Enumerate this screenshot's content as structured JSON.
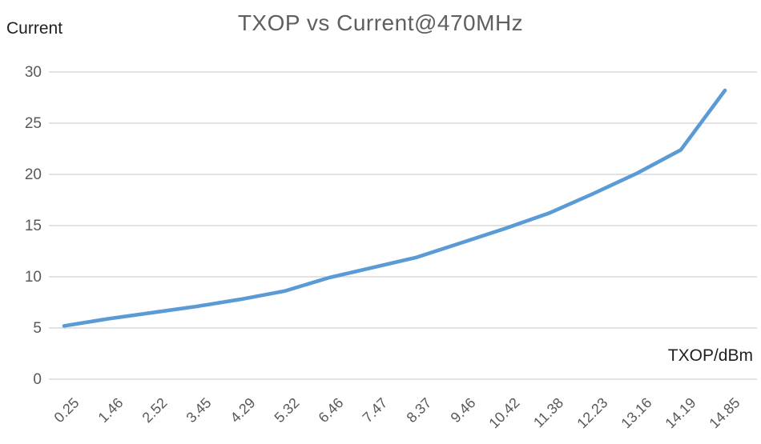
{
  "chart": {
    "title": "TXOP vs Current@470MHz",
    "y_axis_title": "Current",
    "x_axis_title": "TXOP/dBm"
  },
  "colors": {
    "series_line": "#5B9BD5",
    "gridline": "#D9D9D9",
    "tick_text": "#595959",
    "axis_caption_text": "#1f1f1f",
    "title_text": "#5f5f5f",
    "background": "#ffffff"
  },
  "chart_data": {
    "type": "line",
    "title": "TXOP vs Current@470MHz",
    "xlabel": "TXOP/dBm",
    "ylabel": "Current",
    "categories": [
      "0.25",
      "1.46",
      "2.52",
      "3.45",
      "4.29",
      "5.32",
      "6.46",
      "7.47",
      "8.37",
      "9.46",
      "10.42",
      "11.38",
      "12.23",
      "13.16",
      "14.19",
      "14.85"
    ],
    "values": [
      5.2,
      5.9,
      6.5,
      7.1,
      7.8,
      8.6,
      9.9,
      10.9,
      11.9,
      13.3,
      14.7,
      16.2,
      18.1,
      20.1,
      22.4,
      28.2
    ],
    "ylim": [
      0,
      30
    ],
    "yticks": [
      0,
      5,
      10,
      15,
      20,
      25,
      30
    ],
    "grid": "horizontal",
    "legend": "none",
    "line_style": "solid, thick, round caps"
  }
}
